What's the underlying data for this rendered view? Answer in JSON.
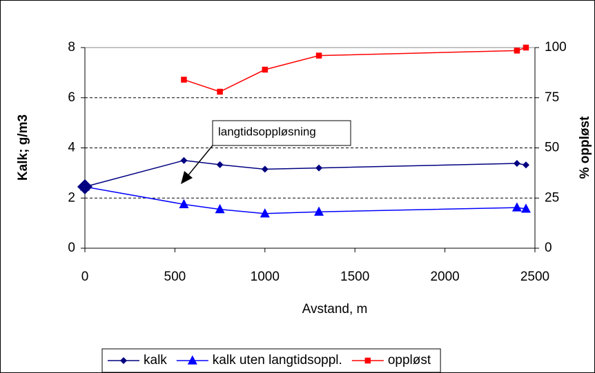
{
  "chart_data": {
    "type": "line",
    "x_label": "Avstand, m",
    "y_label": "Kalk; g/m3",
    "y2_label": "% oppløst",
    "annotation": "langtidsoppløsning",
    "x": [
      0,
      550,
      750,
      1000,
      1300,
      2400,
      2450
    ],
    "series": [
      {
        "name": "kalk",
        "color": "#000080",
        "marker": "diamond",
        "values": [
          2.45,
          3.5,
          3.33,
          3.15,
          3.2,
          3.38,
          3.32
        ]
      },
      {
        "name": "kalk uten langtidsoppl.",
        "color": "#0000ff",
        "marker": "triangle",
        "values": [
          2.45,
          1.75,
          1.55,
          1.38,
          1.45,
          1.62,
          1.57
        ]
      },
      {
        "name": "oppløst",
        "color": "#ff0000",
        "marker": "square",
        "axis": "y2",
        "values": [
          null,
          84,
          78,
          89,
          96,
          98.5,
          100
        ]
      }
    ],
    "xlim": [
      0,
      2500
    ],
    "xticks": [
      0,
      500,
      1000,
      1500,
      2000,
      2500
    ],
    "ylim": [
      0,
      8
    ],
    "yticks": [
      0,
      2,
      4,
      6,
      8
    ],
    "y2lim": [
      0,
      100
    ],
    "y2ticks": [
      0,
      25,
      50,
      75,
      100
    ],
    "grid": true,
    "legend": "bottom"
  }
}
